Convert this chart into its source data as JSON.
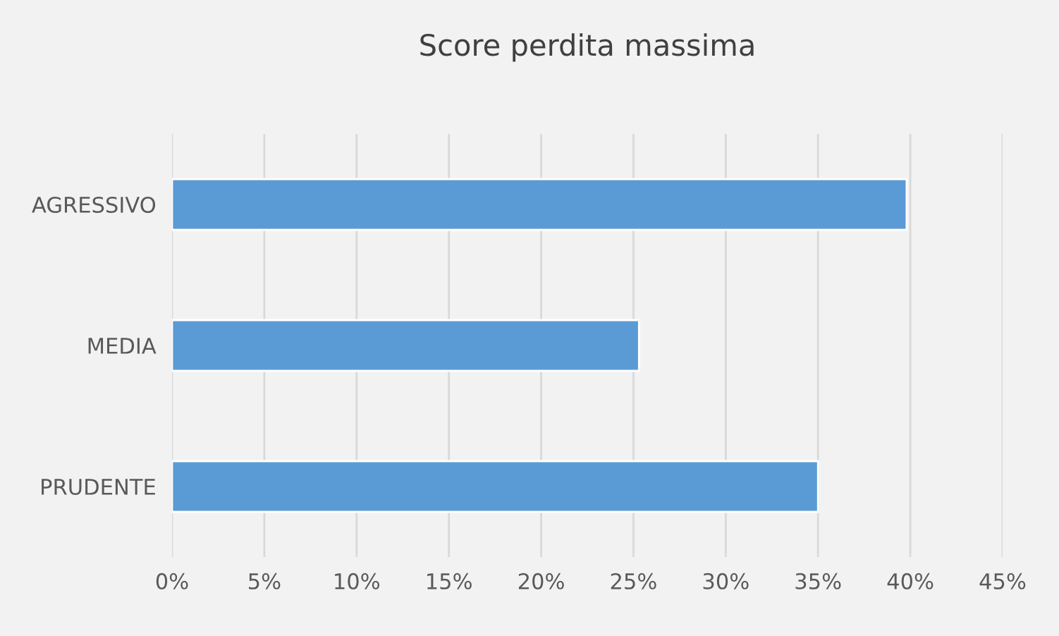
{
  "chart_data": {
    "type": "bar",
    "orientation": "horizontal",
    "title": "Score perdita massima",
    "categories": [
      "AGRESSIVO",
      "MEDIA",
      "PRUDENTE"
    ],
    "values": [
      39.8,
      25.3,
      35.0
    ],
    "color": "#5b9bd5",
    "xlim": [
      0,
      45
    ],
    "xticks": [
      {
        "value": 0,
        "label": "0%"
      },
      {
        "value": 5,
        "label": "5%"
      },
      {
        "value": 10,
        "label": "10%"
      },
      {
        "value": 15,
        "label": "15%"
      },
      {
        "value": 20,
        "label": "20%"
      },
      {
        "value": 25,
        "label": "25%"
      },
      {
        "value": 30,
        "label": "30%"
      },
      {
        "value": 35,
        "label": "35%"
      },
      {
        "value": 40,
        "label": "40%"
      },
      {
        "value": 45,
        "label": "45%"
      }
    ],
    "grid": "x"
  }
}
